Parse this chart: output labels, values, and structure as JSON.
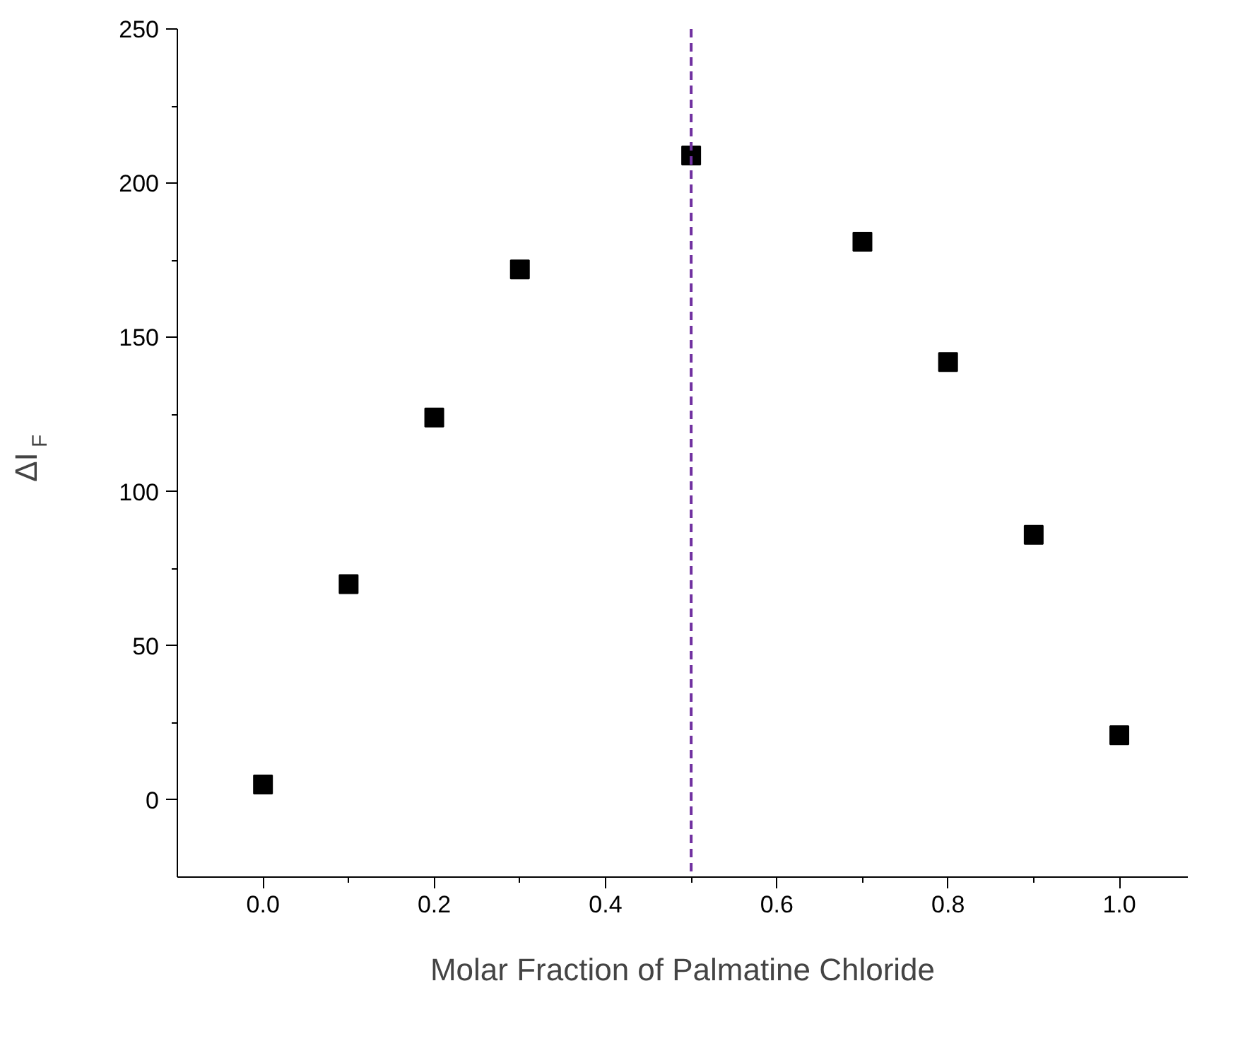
{
  "chart_data": {
    "type": "scatter",
    "xlabel": "Molar Fraction of Palmatine Chloride",
    "ylabel": "ΔI$_{F}$",
    "x": [
      0.0,
      0.1,
      0.2,
      0.3,
      0.5,
      0.7,
      0.8,
      0.9,
      1.0
    ],
    "series": [
      {
        "color": "#000000",
        "values": [
          5,
          70,
          124,
          172,
          209,
          181,
          142,
          86,
          21
        ]
      }
    ],
    "marker": "square",
    "xlim": [
      -0.1,
      1.08
    ],
    "ylim": [
      -25,
      250
    ],
    "xticks": [
      {
        "value": 0,
        "label": "0.0"
      },
      {
        "value": 0.2,
        "label": "0.2"
      },
      {
        "value": 0.4,
        "label": "0.4"
      },
      {
        "value": 0.6,
        "label": "0.6"
      },
      {
        "value": 0.8,
        "label": "0.8"
      },
      {
        "value": 1,
        "label": "1.0"
      }
    ],
    "yticks": [
      0,
      50,
      100,
      150,
      200,
      250
    ],
    "ref_lines": [
      {
        "axis": "x",
        "value": 0.5,
        "color": "#7030a0",
        "line_style": "dashed"
      }
    ],
    "grid": false
  }
}
